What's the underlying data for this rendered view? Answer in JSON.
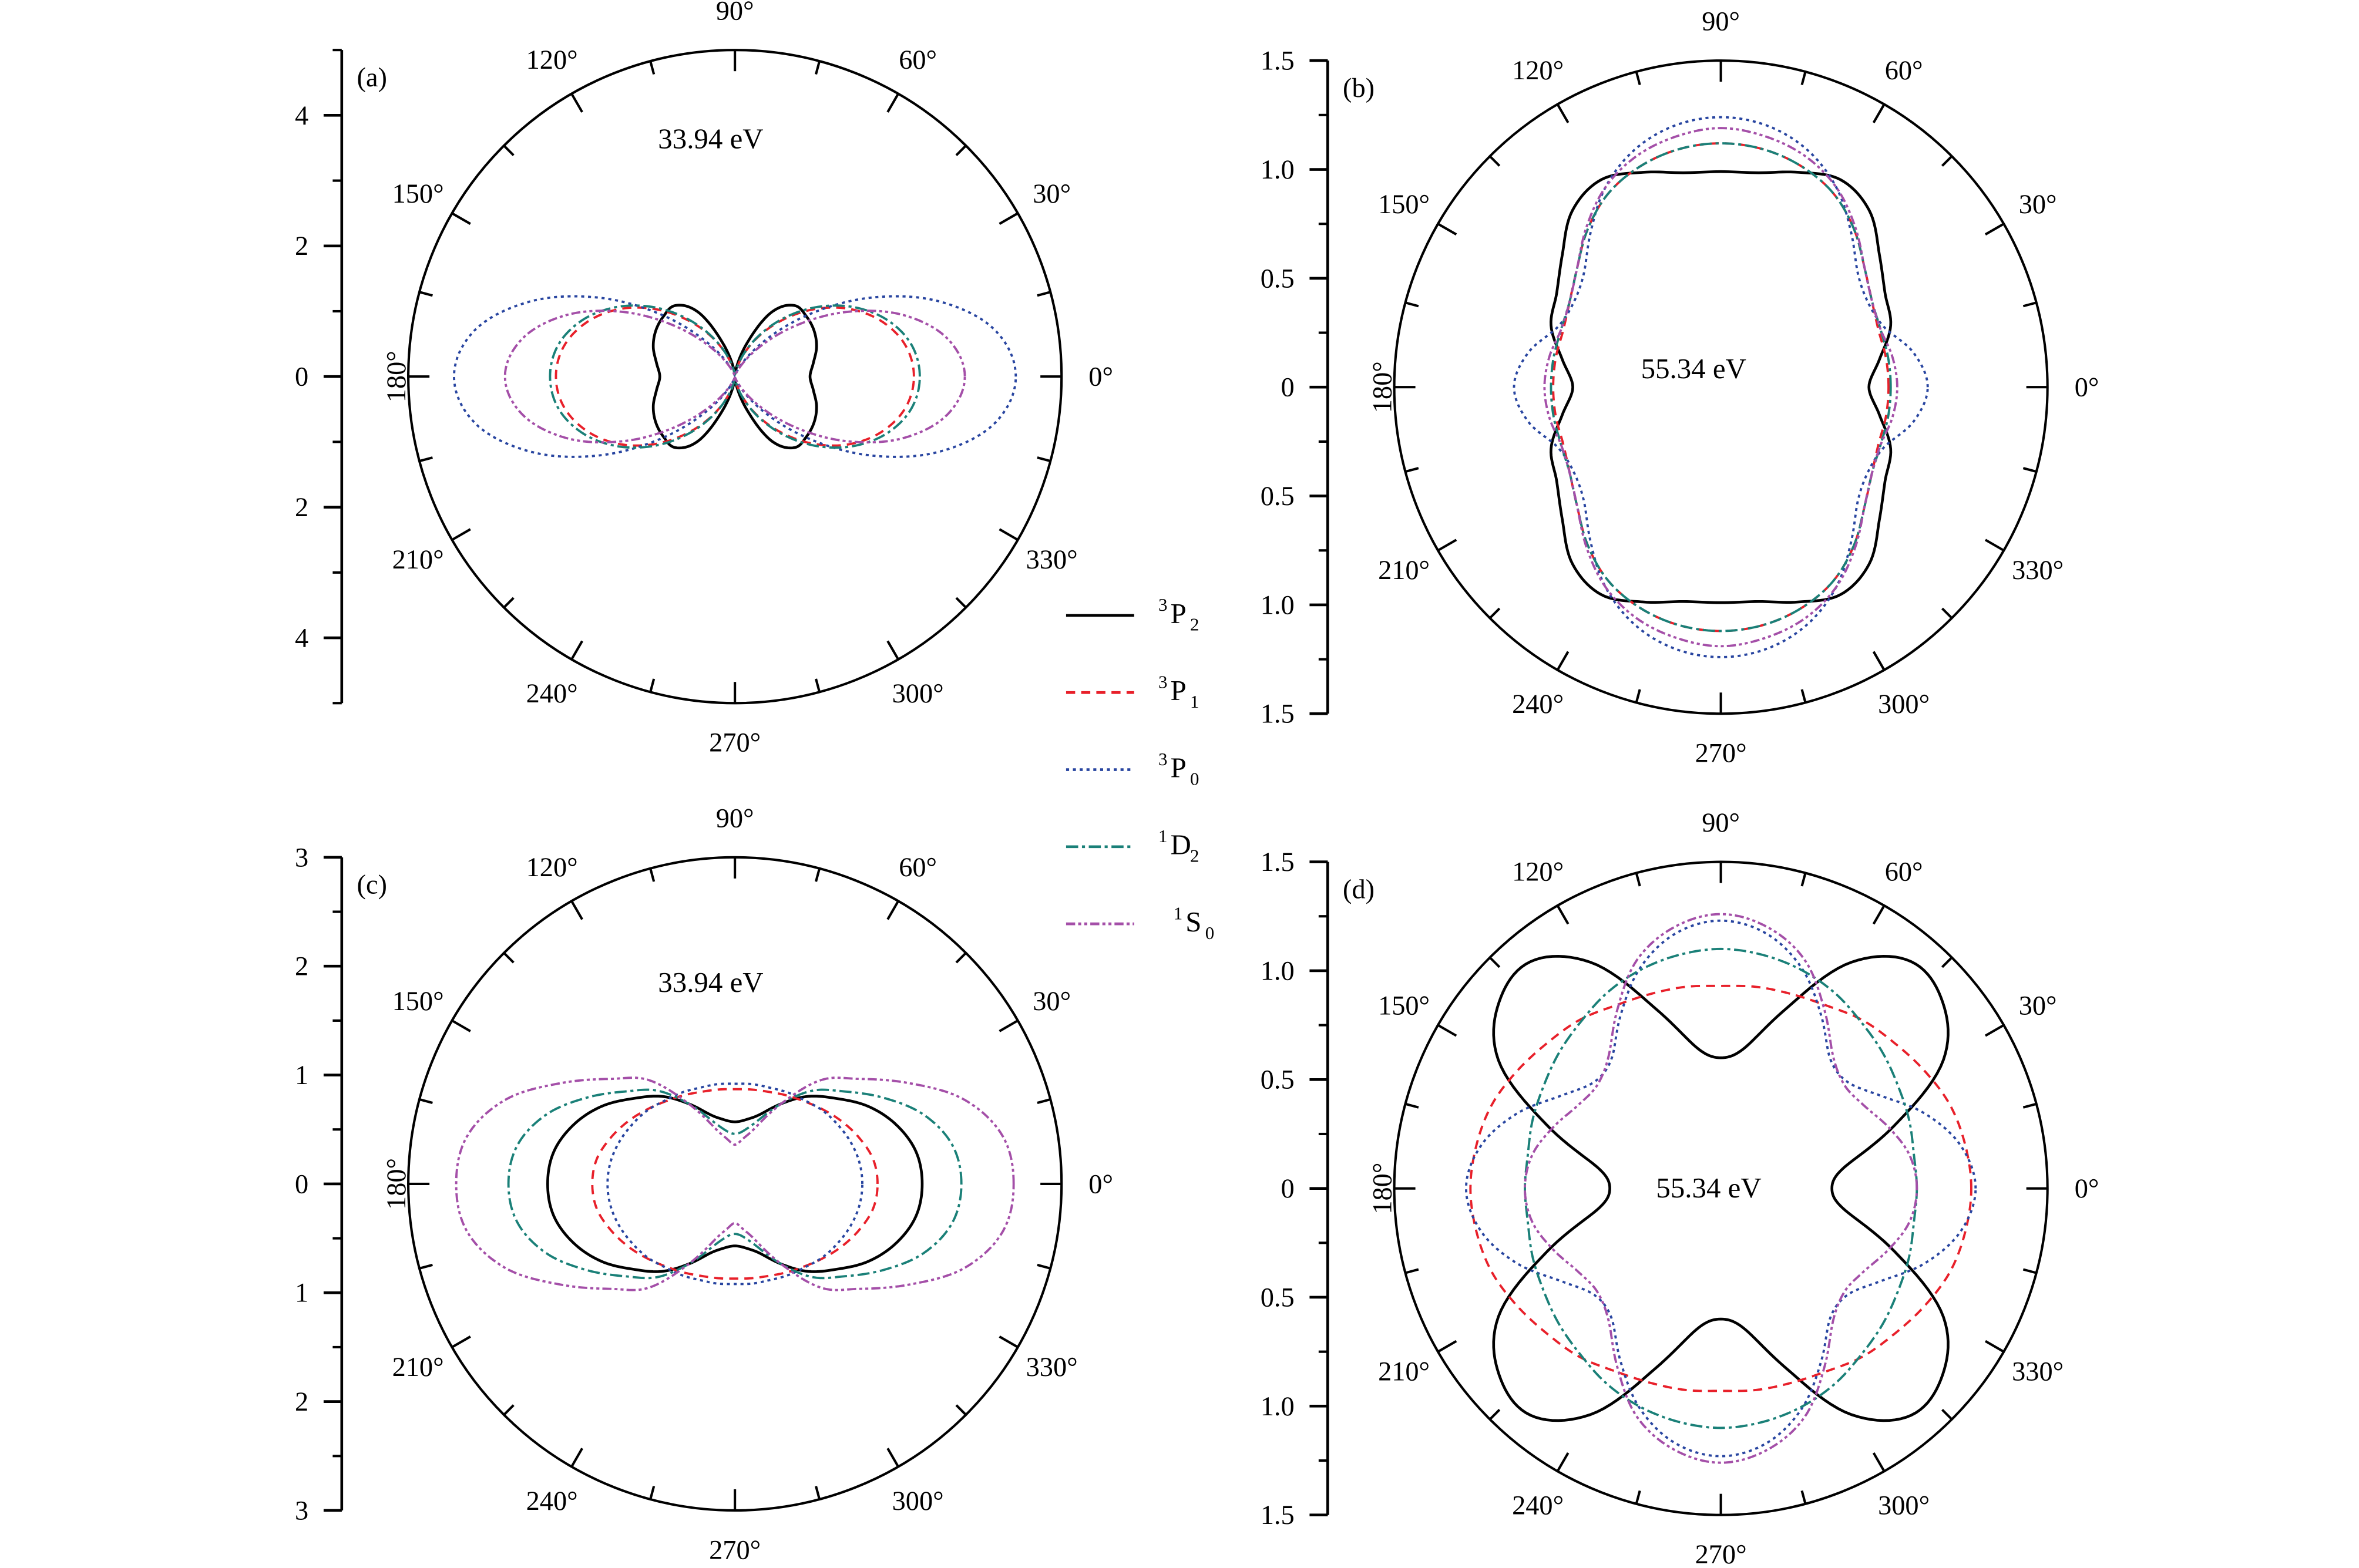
{
  "legend": [
    {
      "sup": "3",
      "base": "P",
      "sub": "2",
      "color": "#000000",
      "dash": "solid"
    },
    {
      "sup": "3",
      "base": "P",
      "sub": "1",
      "color": "#e8202a",
      "dash": "dashed"
    },
    {
      "sup": "3",
      "base": "P",
      "sub": "0",
      "color": "#2845a0",
      "dash": "dotted"
    },
    {
      "sup": "1",
      "base": "D",
      "sub": "2",
      "color": "#1a8078",
      "dash": "dash-dot"
    },
    {
      "sup": "1",
      "base": "S",
      "sub": "0",
      "color": "#a44fa8",
      "dash": "dash-dot-dot"
    }
  ],
  "chart_data": [
    {
      "type": "polar-line",
      "panel_label": "(a)",
      "annotation": "33.94 eV",
      "rlim": [
        0,
        5
      ],
      "radial_axis": {
        "major_ticks": [
          4,
          2,
          0,
          -2,
          -4
        ],
        "major_labels": [
          "4",
          "2",
          "0",
          "2",
          "4"
        ],
        "minor_step": 1
      },
      "angle_labels": [
        "0°",
        "30°",
        "60°",
        "90°",
        "120°",
        "150°",
        "180°",
        "210°",
        "240°",
        "270°",
        "300°",
        "330°"
      ],
      "theta_deg": [
        0,
        10,
        20,
        30,
        40,
        50,
        60,
        70,
        80,
        90
      ],
      "series": [
        {
          "r": [
            1.15,
            1.22,
            1.33,
            1.4,
            1.43,
            1.42,
            1.15,
            0.55,
            0.15,
            0.05
          ]
        },
        {
          "r": [
            2.74,
            2.66,
            2.42,
            2.06,
            1.61,
            1.13,
            0.69,
            0.32,
            0.08,
            0.03
          ]
        },
        {
          "r": [
            4.3,
            4.05,
            3.35,
            2.42,
            1.48,
            0.73,
            0.27,
            0.06,
            0.02,
            0.02
          ]
        },
        {
          "r": [
            2.83,
            2.75,
            2.5,
            2.12,
            1.66,
            1.17,
            0.71,
            0.33,
            0.09,
            0.03
          ]
        },
        {
          "r": [
            3.52,
            3.31,
            2.75,
            1.98,
            1.21,
            0.6,
            0.22,
            0.05,
            0.02,
            0.02
          ]
        }
      ]
    },
    {
      "type": "polar-line",
      "panel_label": "(b)",
      "annotation": "55.34 eV",
      "rlim": [
        0,
        1.5
      ],
      "radial_axis": {
        "major_ticks": [
          1.5,
          1.0,
          0.5,
          0,
          -0.5,
          -1.0,
          -1.5
        ],
        "major_labels": [
          "1.5",
          "1.0",
          "0.5",
          "0",
          "0.5",
          "1.0",
          "1.5"
        ],
        "minor_step": 0.25
      },
      "angle_labels": [
        "0°",
        "30°",
        "60°",
        "90°",
        "120°",
        "150°",
        "180°",
        "210°",
        "240°",
        "270°",
        "300°",
        "330°"
      ],
      "theta_deg": [
        0,
        10,
        20,
        30,
        40,
        50,
        60,
        70,
        80,
        90
      ],
      "series": [
        {
          "r": [
            0.68,
            0.74,
            0.83,
            0.87,
            0.95,
            1.06,
            1.1,
            1.05,
            1.0,
            0.99
          ]
        },
        {
          "r": [
            0.77,
            0.77,
            0.77,
            0.8,
            0.86,
            0.95,
            1.03,
            1.08,
            1.11,
            1.12
          ]
        },
        {
          "r": [
            0.95,
            0.9,
            0.8,
            0.78,
            0.82,
            0.93,
            1.06,
            1.16,
            1.22,
            1.24
          ]
        },
        {
          "r": [
            0.78,
            0.78,
            0.78,
            0.8,
            0.86,
            0.95,
            1.03,
            1.08,
            1.11,
            1.12
          ]
        },
        {
          "r": [
            0.81,
            0.8,
            0.78,
            0.8,
            0.86,
            0.96,
            1.06,
            1.13,
            1.17,
            1.19
          ]
        }
      ]
    },
    {
      "type": "polar-line",
      "panel_label": "(c)",
      "annotation": "33.94 eV",
      "rlim": [
        0,
        3
      ],
      "radial_axis": {
        "major_ticks": [
          3,
          2,
          1,
          0,
          -1,
          -2,
          -3
        ],
        "major_labels": [
          "3",
          "2",
          "1",
          "0",
          "1",
          "2",
          "3"
        ],
        "minor_step": 0.5
      },
      "angle_labels": [
        "0°",
        "30°",
        "60°",
        "90°",
        "120°",
        "150°",
        "180°",
        "210°",
        "240°",
        "270°",
        "300°",
        "330°"
      ],
      "theta_deg": [
        0,
        10,
        20,
        30,
        40,
        50,
        60,
        70,
        80,
        90
      ],
      "series": [
        {
          "r": [
            1.72,
            1.69,
            1.58,
            1.42,
            1.22,
            1.05,
            0.85,
            0.68,
            0.6,
            0.57
          ]
        },
        {
          "r": [
            1.31,
            1.29,
            1.22,
            1.14,
            1.06,
            0.99,
            0.94,
            0.9,
            0.88,
            0.87
          ]
        },
        {
          "r": [
            1.17,
            1.16,
            1.13,
            1.09,
            1.05,
            1.0,
            0.97,
            0.94,
            0.93,
            0.92
          ]
        },
        {
          "r": [
            2.08,
            2.03,
            1.85,
            1.58,
            1.32,
            1.12,
            0.85,
            0.62,
            0.5,
            0.46
          ]
        },
        {
          "r": [
            2.56,
            2.5,
            2.25,
            1.85,
            1.5,
            1.25,
            0.85,
            0.55,
            0.42,
            0.36
          ]
        }
      ]
    },
    {
      "type": "polar-line",
      "panel_label": "(d)",
      "annotation": "55.34 eV",
      "rlim": [
        0,
        1.5
      ],
      "radial_axis": {
        "major_ticks": [
          1.5,
          1.0,
          0.5,
          0,
          -0.5,
          -1.0,
          -1.5
        ],
        "major_labels": [
          "1.5",
          "1.0",
          "0.5",
          "0",
          "0.5",
          "1.0",
          "1.5"
        ],
        "minor_step": 0.25
      },
      "angle_labels": [
        "0°",
        "30°",
        "60°",
        "90°",
        "120°",
        "150°",
        "180°",
        "210°",
        "240°",
        "270°",
        "300°",
        "330°"
      ],
      "theta_deg": [
        0,
        10,
        20,
        30,
        40,
        50,
        60,
        70,
        80,
        90
      ],
      "series": [
        {
          "r": [
            0.51,
            0.58,
            0.85,
            1.18,
            1.33,
            1.36,
            1.2,
            0.88,
            0.66,
            0.6
          ]
        },
        {
          "r": [
            1.15,
            1.14,
            1.12,
            1.08,
            1.04,
            1.01,
            0.97,
            0.95,
            0.94,
            0.93
          ]
        },
        {
          "r": [
            1.17,
            1.12,
            1.0,
            0.85,
            0.76,
            0.78,
            0.92,
            1.08,
            1.19,
            1.23
          ]
        },
        {
          "r": [
            0.9,
            0.9,
            0.92,
            0.94,
            0.97,
            1.0,
            1.04,
            1.07,
            1.09,
            1.1
          ]
        },
        {
          "r": [
            0.9,
            0.88,
            0.82,
            0.76,
            0.74,
            0.8,
            0.95,
            1.12,
            1.22,
            1.26
          ]
        }
      ]
    }
  ]
}
